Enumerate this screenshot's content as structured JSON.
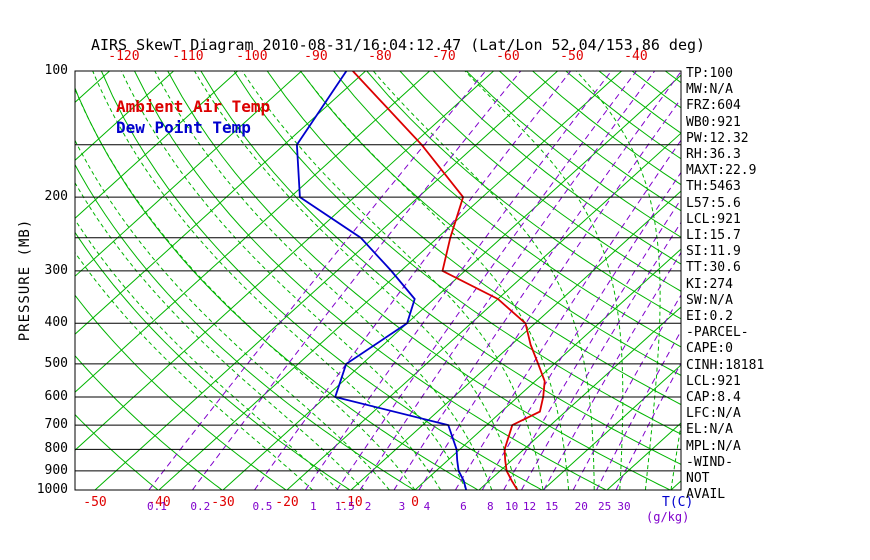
{
  "colors": {
    "background": "#ffffff",
    "isotherm_green": "#00b400",
    "moist_adiabat_green": "#00b400",
    "mixing_ratio_purple": "#8000cc",
    "temperature_red": "#dc0000",
    "dew_point_blue": "#0000cd",
    "axis_tick_red": "#e00000",
    "frame_black": "#000000"
  },
  "stats": [
    "TP:100",
    "MW:N/A",
    "FRZ:604",
    "WB0:921",
    "PW:12.32",
    "RH:36.3",
    "MAXT:22.9",
    "TH:5463",
    "L57:5.6",
    "LCL:921",
    "LI:15.7",
    "SI:11.9",
    "TT:30.6",
    "KI:274",
    "SW:N/A",
    "EI:0.2",
    "-PARCEL-",
    "CAPE:0",
    "CINH:18181",
    "LCL:921",
    "CAP:8.4",
    "LFC:N/A",
    "EL:N/A",
    "MPL:N/A",
    "-WIND-",
    "NOT",
    "AVAIL"
  ],
  "axes": {
    "mixing_unit_label": "(g/kg)"
  },
  "chart_data": {
    "type": "line",
    "variant": "skew-t-log-p",
    "title": "AIRS SkewT Diagram 2010-08-31/16:04:12.47 (Lat/Lon 52.04/153.86 deg)",
    "ylabel": "PRESSURE (MB)",
    "xlabel": "T(C)",
    "y_scale": "log",
    "y_range_mb": [
      100,
      1000
    ],
    "grid": true,
    "legend_position": "top-left",
    "pressure_ticks_mb": [
      100,
      200,
      300,
      400,
      500,
      600,
      700,
      800,
      900,
      1000
    ],
    "pressure_lines_mb": [
      100,
      150,
      200,
      250,
      300,
      400,
      500,
      600,
      700,
      800,
      900,
      1000
    ],
    "top_temp_ticks_c": [
      -120,
      -110,
      -100,
      -90,
      -80,
      -70,
      -60,
      -50,
      -40
    ],
    "bottom_temp_ticks_c": [
      -50,
      -40,
      -30,
      -20,
      -10,
      0
    ],
    "isotherms_c": {
      "min": -160,
      "max": 40,
      "step": 10
    },
    "dry_adiabats_k": {
      "min": 233,
      "max": 473,
      "step": 10
    },
    "moist_adiabats_start_c": {
      "min": -16,
      "max": 40,
      "step": 4
    },
    "mixing_ratio_g_per_kg": [
      0.1,
      0.2,
      0.5,
      1,
      1.5,
      2,
      3,
      4,
      6,
      8,
      10,
      12,
      15,
      20,
      25,
      30
    ],
    "point_format": "[pressure_mb, temperature_c]",
    "series": [
      {
        "name": "Ambient Air Temp",
        "color": "#dc0000",
        "points": [
          [
            1000,
            16
          ],
          [
            950,
            13.5
          ],
          [
            900,
            11
          ],
          [
            850,
            9
          ],
          [
            800,
            7
          ],
          [
            700,
            4
          ],
          [
            650,
            6
          ],
          [
            600,
            4
          ],
          [
            550,
            1.5
          ],
          [
            500,
            -2.5
          ],
          [
            450,
            -7
          ],
          [
            400,
            -11.5
          ],
          [
            350,
            -20
          ],
          [
            300,
            -33.5
          ],
          [
            250,
            -38
          ],
          [
            200,
            -43
          ],
          [
            150,
            -58.5
          ],
          [
            100,
            -82
          ]
        ]
      },
      {
        "name": "Dew Point Temp",
        "color": "#0000cd",
        "points": [
          [
            1000,
            8
          ],
          [
            950,
            6
          ],
          [
            900,
            3.5
          ],
          [
            850,
            1.5
          ],
          [
            800,
            -0.5
          ],
          [
            700,
            -6
          ],
          [
            600,
            -28.5
          ],
          [
            500,
            -32.5
          ],
          [
            400,
            -30
          ],
          [
            350,
            -33
          ],
          [
            300,
            -41.5
          ],
          [
            250,
            -52
          ],
          [
            200,
            -68.5
          ],
          [
            150,
            -78
          ],
          [
            100,
            -83
          ]
        ]
      }
    ]
  }
}
